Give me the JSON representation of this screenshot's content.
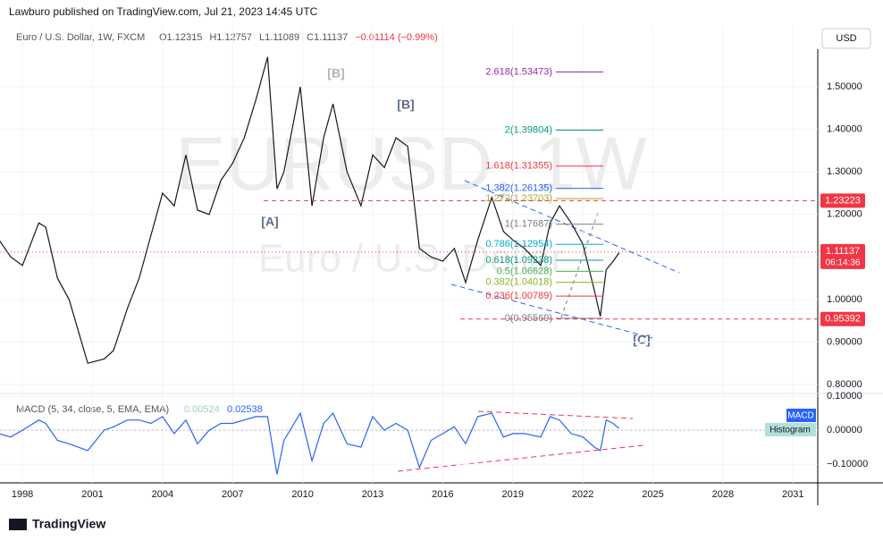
{
  "header": {
    "byline": "Lawburo published on TradingView.com, Jul 21, 2023 14:45 UTC",
    "symbol": "Euro / U.S. Dollar, 1W, FXCM",
    "ohlc": [
      "O1.12315",
      "H1.12757",
      "L1.11089",
      "C1.11137",
      "−0.01114 (−0.99%)"
    ],
    "currency": "USD",
    "watermark": "EURUSD, 1W",
    "watermark_sub": "Euro / U.S. Dollar",
    "waves": [
      "[A]",
      "[B]",
      "[B]",
      "[C]"
    ],
    "footer": "TradingView"
  },
  "chart_data": [
    {
      "type": "line",
      "color": "#131722",
      "x": [
        1997.0,
        1997.5,
        1998.0,
        1998.7,
        1999.0,
        1999.5,
        2000.0,
        2000.8,
        2001.5,
        2001.9,
        2002.5,
        2003.0,
        2003.5,
        2004.0,
        2004.5,
        2005.0,
        2005.5,
        2006.0,
        2006.5,
        2007.0,
        2007.5,
        2008.0,
        2008.5,
        2008.9,
        2009.2,
        2009.9,
        2010.4,
        2010.9,
        2011.3,
        2011.9,
        2012.5,
        2013.0,
        2013.5,
        2014.0,
        2014.5,
        2015.0,
        2015.5,
        2016.0,
        2016.5,
        2016.98,
        2017.5,
        2018.1,
        2018.6,
        2019.0,
        2019.5,
        2020.2,
        2020.6,
        2021.0,
        2021.5,
        2022.0,
        2022.5,
        2022.75,
        2023.0,
        2023.3,
        2023.55
      ],
      "values": [
        1.14,
        1.1,
        1.08,
        1.18,
        1.17,
        1.05,
        1.0,
        0.85,
        0.86,
        0.88,
        0.98,
        1.05,
        1.15,
        1.25,
        1.22,
        1.34,
        1.21,
        1.2,
        1.28,
        1.32,
        1.38,
        1.47,
        1.57,
        1.26,
        1.3,
        1.5,
        1.22,
        1.38,
        1.46,
        1.3,
        1.22,
        1.34,
        1.31,
        1.38,
        1.36,
        1.12,
        1.1,
        1.09,
        1.12,
        1.04,
        1.14,
        1.24,
        1.16,
        1.14,
        1.12,
        1.08,
        1.18,
        1.22,
        1.18,
        1.13,
        1.02,
        0.96,
        1.07,
        1.09,
        1.11
      ],
      "xlim": [
        1997.04,
        2032.06
      ],
      "xticks": [
        1998,
        2001,
        2004,
        2007,
        2010,
        2013,
        2016,
        2019,
        2022,
        2025,
        2028,
        2031
      ],
      "ylim": [
        0.779,
        1.641
      ],
      "yticks": [
        {
          "value": 0.8,
          "label": "0.80000"
        },
        {
          "value": 0.9,
          "label": "0.90000"
        },
        {
          "value": 1.0,
          "label": "1.00000"
        },
        {
          "value": 1.1,
          "label": "1.10000"
        },
        {
          "value": 1.2,
          "label": "1.20000"
        },
        {
          "value": 1.3,
          "label": "1.30000"
        },
        {
          "value": 1.4,
          "label": "1.40000"
        },
        {
          "value": 1.5,
          "label": "1.50000"
        }
      ],
      "fib_levels": [
        {
          "value": 1.53473,
          "label": "2.618(1.53473)",
          "color": "#9c27b0"
        },
        {
          "value": 1.39804,
          "label": "2(1.39804)",
          "color": "#089981"
        },
        {
          "value": 1.31355,
          "label": "1.618(1.31355)",
          "color": "#f23645"
        },
        {
          "value": 1.26135,
          "label": "1.382(1.26135)",
          "color": "#2962ff"
        },
        {
          "value": 1.23703,
          "label": "1.272(1.23703)",
          "color": "#a8a822"
        },
        {
          "value": 1.17687,
          "label": "1(1.17687)",
          "color": "#787b86"
        },
        {
          "value": 1.12954,
          "label": "0.786(1.12954)",
          "color": "#00acc1"
        },
        {
          "value": 1.09238,
          "label": "0.618(1.09238)",
          "color": "#089981"
        },
        {
          "value": 1.06628,
          "label": "0.5(1.06628)",
          "color": "#4caf50"
        },
        {
          "value": 1.04018,
          "label": "0.382(1.04018)",
          "color": "#8bb12a"
        },
        {
          "value": 1.00789,
          "label": "0.236(1.00789)",
          "color": "#f23645"
        },
        {
          "value": 0.95569,
          "label": "0(0.95569)",
          "color": "#787b86"
        }
      ],
      "hlines": [
        {
          "value": 1.23223,
          "color": "#f23645"
        },
        {
          "value": 0.95392,
          "color": "#f23645"
        }
      ],
      "last_price": 1.11137,
      "countdown": "06:14:36",
      "last_color": "#f23645"
    },
    {
      "type": "line",
      "title": "MACD (5, 34, close, 5, EMA, EMA)",
      "color": "#2962ff",
      "last_values": [
        0.00524,
        0.02538
      ],
      "tags": [
        "MACD",
        "Histogram"
      ],
      "values": [
        -0.01,
        -0.02,
        0.0,
        0.03,
        0.02,
        -0.03,
        -0.04,
        -0.06,
        0.0,
        0.01,
        0.03,
        0.03,
        0.02,
        0.04,
        -0.01,
        0.03,
        -0.04,
        0.0,
        0.02,
        0.02,
        0.03,
        0.04,
        0.04,
        -0.13,
        -0.03,
        0.05,
        -0.09,
        0.02,
        0.05,
        -0.04,
        -0.05,
        0.04,
        0.0,
        0.02,
        0.0,
        -0.11,
        -0.03,
        -0.01,
        0.01,
        -0.04,
        0.04,
        0.05,
        -0.02,
        -0.01,
        -0.01,
        -0.02,
        0.04,
        0.03,
        -0.01,
        -0.02,
        -0.05,
        -0.06,
        0.03,
        0.02,
        0.005
      ],
      "ylim": [
        -0.155,
        0.108
      ],
      "yticks": [
        {
          "value": -0.1,
          "label": "−0.10000"
        },
        {
          "value": 0,
          "label": "0.00000"
        },
        {
          "value": 0.1,
          "label": "0.10000"
        }
      ]
    }
  ]
}
